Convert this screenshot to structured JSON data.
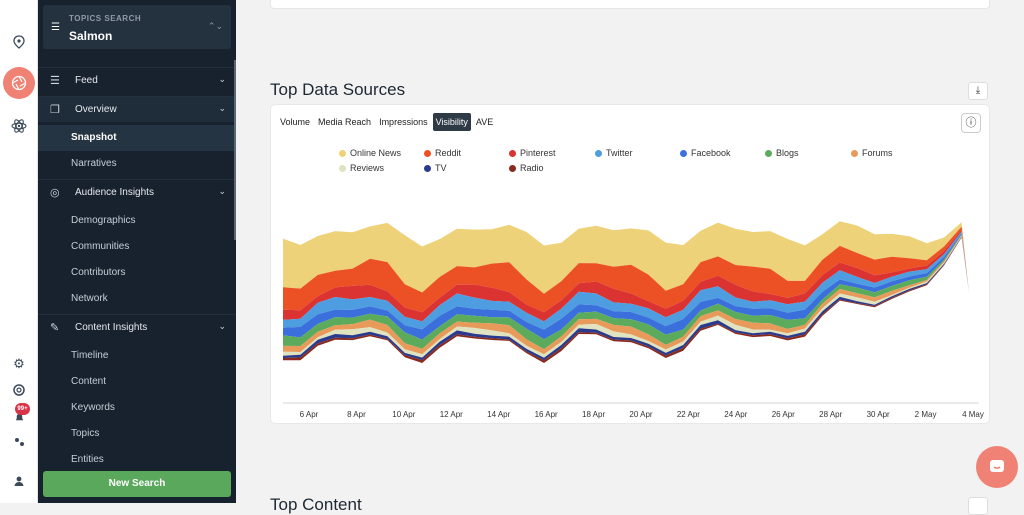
{
  "rail": {
    "icons": [
      "location-pin-icon",
      "aperture-icon",
      "atom-icon",
      "settings-gear-icon",
      "support-lifebuoy-icon",
      "notification-bell-icon",
      "users-icon",
      "user-profile-icon"
    ],
    "notification_count": "99+"
  },
  "sidebar": {
    "topics_label": "TOPICS SEARCH",
    "topics_value": "Salmon",
    "sections": [
      {
        "label": "Feed",
        "icon": "list-icon"
      },
      {
        "label": "Overview",
        "icon": "layers-icon",
        "items": [
          "Snapshot",
          "Narratives"
        ]
      },
      {
        "label": "Audience Insights",
        "icon": "target-icon",
        "items": [
          "Demographics",
          "Communities",
          "Contributors",
          "Network"
        ]
      },
      {
        "label": "Content Insights",
        "icon": "chart-icon",
        "items": [
          "Timeline",
          "Content",
          "Keywords",
          "Topics",
          "Entities"
        ]
      }
    ],
    "active_item": "Snapshot",
    "new_search": "New Search"
  },
  "main": {
    "title": "Top Data Sources",
    "next_title": "Top Content",
    "tabs": [
      "Volume",
      "Media Reach",
      "Impressions",
      "Visibility",
      "AVE"
    ],
    "active_tab": "Visibility"
  },
  "chart_data": {
    "type": "area",
    "x": [
      "6 Apr",
      "8 Apr",
      "10 Apr",
      "12 Apr",
      "14 Apr",
      "16 Apr",
      "18 Apr",
      "20 Apr",
      "22 Apr",
      "24 Apr",
      "26 Apr",
      "28 Apr",
      "30 Apr",
      "2 May",
      "4 May"
    ],
    "series": [
      {
        "name": "Online News",
        "color": "#eed27a"
      },
      {
        "name": "Reddit",
        "color": "#ec5126"
      },
      {
        "name": "Pinterest",
        "color": "#db3232"
      },
      {
        "name": "Twitter",
        "color": "#4d9de0"
      },
      {
        "name": "Facebook",
        "color": "#3a6fdc"
      },
      {
        "name": "Blogs",
        "color": "#5cab5d"
      },
      {
        "name": "Forums",
        "color": "#e89a5a"
      },
      {
        "name": "Reviews",
        "color": "#dfe3bf"
      },
      {
        "name": "TV",
        "color": "#2a3a8c"
      },
      {
        "name": "Radio",
        "color": "#8a2a1c"
      }
    ],
    "legend": "top"
  }
}
